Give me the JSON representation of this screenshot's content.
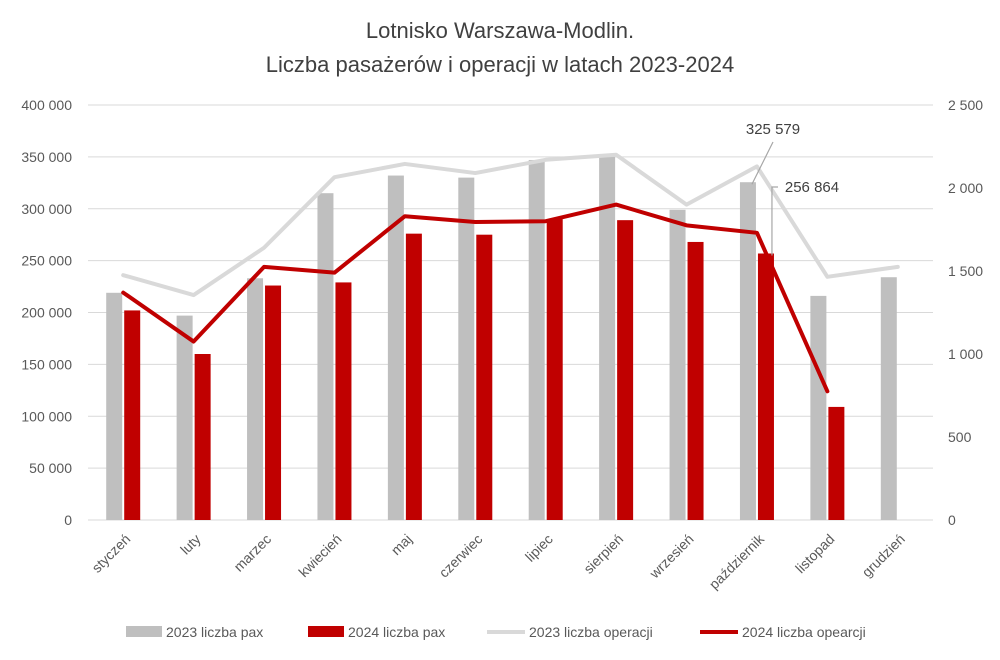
{
  "chart_data": {
    "type": "bar",
    "title_line1": "Lotnisko Warszawa-Modlin.",
    "title_line2": "Liczba pasażerów i operacji w latach 2023-2024",
    "categories": [
      "styczeń",
      "luty",
      "marzec",
      "kwiecień",
      "maj",
      "czerwiec",
      "lipiec",
      "sierpień",
      "wrzesień",
      "październik",
      "listopad",
      "grudzień"
    ],
    "y_left": {
      "min": 0,
      "max": 400000,
      "ticks": [
        0,
        50000,
        100000,
        150000,
        200000,
        250000,
        300000,
        350000,
        400000
      ],
      "tick_labels": [
        "0",
        "50 000",
        "100 000",
        "150 000",
        "200 000",
        "250 000",
        "300 000",
        "350 000",
        "400 000"
      ]
    },
    "y_right": {
      "min": 0,
      "max": 2500,
      "ticks": [
        0,
        500,
        1000,
        1500,
        2000,
        2500
      ],
      "tick_labels": [
        "0",
        "500",
        "1 000",
        "1 500",
        "2 000",
        "2 500"
      ]
    },
    "grid": true,
    "legend_position": "bottom",
    "bar_series": [
      {
        "name": "2023 liczba pax",
        "color": "#bfbfbf",
        "axis": "left",
        "values": [
          219000,
          197000,
          233000,
          315000,
          332000,
          330000,
          347000,
          350000,
          299000,
          325579,
          216000,
          234000
        ]
      },
      {
        "name": "2024 liczba pax",
        "color": "#c00000",
        "axis": "left",
        "values": [
          202000,
          160000,
          226000,
          229000,
          276000,
          275000,
          290000,
          289000,
          268000,
          256864,
          109000,
          null
        ]
      }
    ],
    "line_series": [
      {
        "name": "2023 liczba operacji",
        "color": "#d9d9d9",
        "axis": "right",
        "values": [
          1475,
          1355,
          1640,
          2065,
          2145,
          2090,
          2170,
          2200,
          1900,
          2130,
          1465,
          1525
        ]
      },
      {
        "name": "2024 liczba opearcji",
        "color": "#c00000",
        "axis": "right",
        "values": [
          1370,
          1075,
          1525,
          1490,
          1830,
          1795,
          1800,
          1900,
          1775,
          1730,
          775,
          null
        ]
      }
    ],
    "annotations": [
      {
        "text": "325 579",
        "category_index": 9,
        "series_index": 0
      },
      {
        "text": "256 864",
        "category_index": 9,
        "series_index": 1
      }
    ]
  }
}
